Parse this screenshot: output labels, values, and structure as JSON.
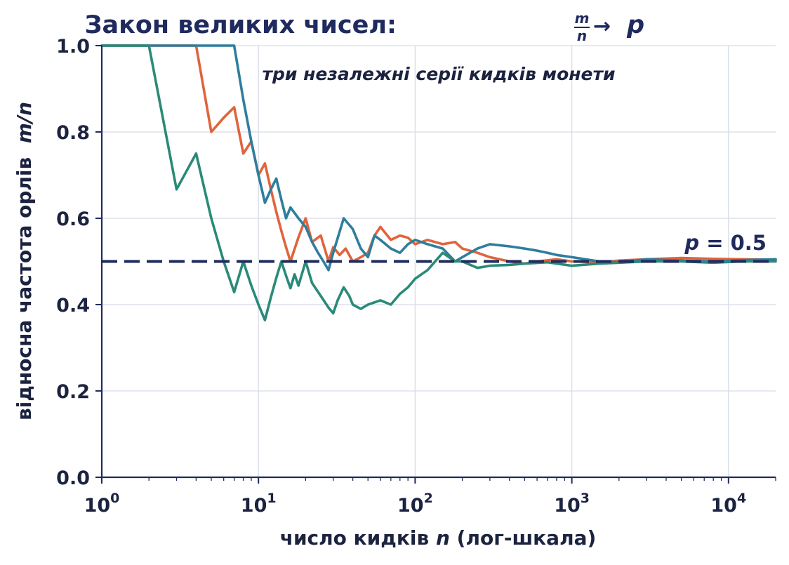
{
  "chart_data": {
    "type": "line",
    "title": "Закон великих чисел:",
    "title_fraction": {
      "numerator": "m",
      "denominator": "n"
    },
    "title_arrow": "→",
    "title_target": "p",
    "subtitle": "три незалежні серії кидків монети",
    "xlabel": {
      "prefix": "число кидків ",
      "var": "n",
      "suffix": " (лог-шкала)"
    },
    "ylabel": {
      "prefix": "відносна частота орлів  ",
      "var": "m/n"
    },
    "x_scale": "log",
    "xlim": [
      1,
      20000
    ],
    "ylim": [
      0,
      1
    ],
    "x_ticks": [
      {
        "value": 1,
        "base": "10",
        "exp": "0"
      },
      {
        "value": 10,
        "base": "10",
        "exp": "1"
      },
      {
        "value": 100,
        "base": "10",
        "exp": "2"
      },
      {
        "value": 1000,
        "base": "10",
        "exp": "3"
      },
      {
        "value": 10000,
        "base": "10",
        "exp": "4"
      }
    ],
    "y_ticks": [
      "0.0",
      "0.2",
      "0.4",
      "0.6",
      "0.8",
      "1.0"
    ],
    "grid": true,
    "reference_line": {
      "y": 0.5,
      "label_var": "p",
      "label_value": " = 0.5",
      "style": "dashed",
      "color": "#1f2a5e"
    },
    "series": [
      {
        "color": "#e0643c",
        "points": [
          [
            1,
            1
          ],
          [
            2,
            1
          ],
          [
            3,
            1
          ],
          [
            4,
            1
          ],
          [
            5,
            0.8
          ],
          [
            6,
            0.833
          ],
          [
            7,
            0.857
          ],
          [
            8,
            0.75
          ],
          [
            9,
            0.778
          ],
          [
            10,
            0.7
          ],
          [
            11,
            0.727
          ],
          [
            12,
            0.667
          ],
          [
            13,
            0.615
          ],
          [
            14,
            0.571
          ],
          [
            15,
            0.533
          ],
          [
            16,
            0.5
          ],
          [
            18,
            0.556
          ],
          [
            20,
            0.6
          ],
          [
            22,
            0.545
          ],
          [
            25,
            0.56
          ],
          [
            28,
            0.5
          ],
          [
            30,
            0.533
          ],
          [
            33,
            0.515
          ],
          [
            36,
            0.53
          ],
          [
            40,
            0.5
          ],
          [
            45,
            0.51
          ],
          [
            50,
            0.52
          ],
          [
            55,
            0.56
          ],
          [
            60,
            0.58
          ],
          [
            70,
            0.55
          ],
          [
            80,
            0.56
          ],
          [
            90,
            0.555
          ],
          [
            100,
            0.54
          ],
          [
            120,
            0.55
          ],
          [
            150,
            0.54
          ],
          [
            180,
            0.545
          ],
          [
            200,
            0.53
          ],
          [
            250,
            0.52
          ],
          [
            300,
            0.51
          ],
          [
            400,
            0.5
          ],
          [
            500,
            0.495
          ],
          [
            600,
            0.5
          ],
          [
            800,
            0.505
          ],
          [
            1000,
            0.5
          ],
          [
            1500,
            0.498
          ],
          [
            2000,
            0.502
          ],
          [
            3000,
            0.505
          ],
          [
            5000,
            0.508
          ],
          [
            8000,
            0.506
          ],
          [
            12000,
            0.505
          ],
          [
            20000,
            0.504
          ]
        ]
      },
      {
        "color": "#2e7e9e",
        "points": [
          [
            1,
            1
          ],
          [
            2,
            1
          ],
          [
            3,
            1
          ],
          [
            4,
            1
          ],
          [
            5,
            1
          ],
          [
            6,
            1
          ],
          [
            7,
            1
          ],
          [
            8,
            0.875
          ],
          [
            9,
            0.778
          ],
          [
            10,
            0.7
          ],
          [
            11,
            0.636
          ],
          [
            12,
            0.667
          ],
          [
            13,
            0.692
          ],
          [
            14,
            0.643
          ],
          [
            15,
            0.6
          ],
          [
            16,
            0.625
          ],
          [
            18,
            0.6
          ],
          [
            20,
            0.58
          ],
          [
            22,
            0.545
          ],
          [
            24,
            0.52
          ],
          [
            26,
            0.5
          ],
          [
            28,
            0.48
          ],
          [
            30,
            0.52
          ],
          [
            35,
            0.6
          ],
          [
            40,
            0.575
          ],
          [
            45,
            0.53
          ],
          [
            50,
            0.51
          ],
          [
            55,
            0.56
          ],
          [
            60,
            0.55
          ],
          [
            70,
            0.53
          ],
          [
            80,
            0.52
          ],
          [
            90,
            0.54
          ],
          [
            100,
            0.55
          ],
          [
            120,
            0.54
          ],
          [
            150,
            0.53
          ],
          [
            180,
            0.5
          ],
          [
            200,
            0.51
          ],
          [
            250,
            0.53
          ],
          [
            300,
            0.54
          ],
          [
            400,
            0.535
          ],
          [
            500,
            0.53
          ],
          [
            600,
            0.525
          ],
          [
            700,
            0.52
          ],
          [
            800,
            0.515
          ],
          [
            1000,
            0.51
          ],
          [
            1500,
            0.5
          ],
          [
            2000,
            0.498
          ],
          [
            3000,
            0.505
          ],
          [
            5000,
            0.502
          ],
          [
            8000,
            0.5
          ],
          [
            12000,
            0.503
          ],
          [
            20000,
            0.505
          ]
        ]
      },
      {
        "color": "#2a8a78",
        "points": [
          [
            1,
            1
          ],
          [
            2,
            1
          ],
          [
            3,
            0.667
          ],
          [
            4,
            0.75
          ],
          [
            5,
            0.6
          ],
          [
            6,
            0.5
          ],
          [
            7,
            0.429
          ],
          [
            8,
            0.5
          ],
          [
            9,
            0.444
          ],
          [
            10,
            0.4
          ],
          [
            11,
            0.364
          ],
          [
            12,
            0.417
          ],
          [
            13,
            0.462
          ],
          [
            14,
            0.5
          ],
          [
            15,
            0.467
          ],
          [
            16,
            0.438
          ],
          [
            17,
            0.47
          ],
          [
            18,
            0.444
          ],
          [
            20,
            0.5
          ],
          [
            22,
            0.45
          ],
          [
            25,
            0.42
          ],
          [
            28,
            0.393
          ],
          [
            30,
            0.38
          ],
          [
            32,
            0.41
          ],
          [
            35,
            0.44
          ],
          [
            38,
            0.42
          ],
          [
            40,
            0.4
          ],
          [
            45,
            0.39
          ],
          [
            50,
            0.4
          ],
          [
            60,
            0.41
          ],
          [
            70,
            0.4
          ],
          [
            80,
            0.425
          ],
          [
            90,
            0.44
          ],
          [
            100,
            0.46
          ],
          [
            120,
            0.48
          ],
          [
            150,
            0.52
          ],
          [
            180,
            0.5
          ],
          [
            200,
            0.5
          ],
          [
            250,
            0.485
          ],
          [
            300,
            0.49
          ],
          [
            400,
            0.492
          ],
          [
            500,
            0.495
          ],
          [
            700,
            0.498
          ],
          [
            1000,
            0.49
          ],
          [
            1500,
            0.495
          ],
          [
            2000,
            0.497
          ],
          [
            3000,
            0.5
          ],
          [
            5000,
            0.5
          ],
          [
            8000,
            0.497
          ],
          [
            12000,
            0.5
          ],
          [
            20000,
            0.5
          ]
        ]
      }
    ]
  }
}
